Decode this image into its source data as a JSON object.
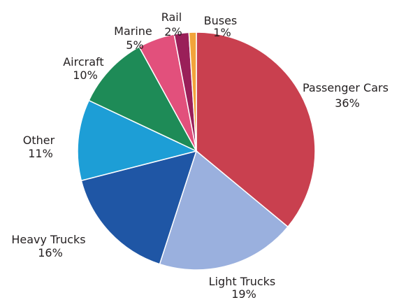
{
  "chart_data": {
    "type": "pie",
    "start_angle_deg": 0,
    "direction": "clockwise",
    "slices": [
      {
        "name": "Passenger Cars",
        "value": 36,
        "value_label": "36%",
        "color": "#c9404f"
      },
      {
        "name": "Light Trucks",
        "value": 19,
        "value_label": "19%",
        "color": "#9ab0de"
      },
      {
        "name": "Heavy Trucks",
        "value": 16,
        "value_label": "16%",
        "color": "#1f56a5"
      },
      {
        "name": "Other",
        "value": 11,
        "value_label": "11%",
        "color": "#1d9ed6"
      },
      {
        "name": "Aircraft",
        "value": 10,
        "value_label": "10%",
        "color": "#1e8b57"
      },
      {
        "name": "Marine",
        "value": 5,
        "value_label": "5%",
        "color": "#e2507c"
      },
      {
        "name": "Rail",
        "value": 2,
        "value_label": "2%",
        "color": "#9a1f59"
      },
      {
        "name": "Buses",
        "value": 1,
        "value_label": "1%",
        "color": "#f2a43a"
      }
    ]
  }
}
